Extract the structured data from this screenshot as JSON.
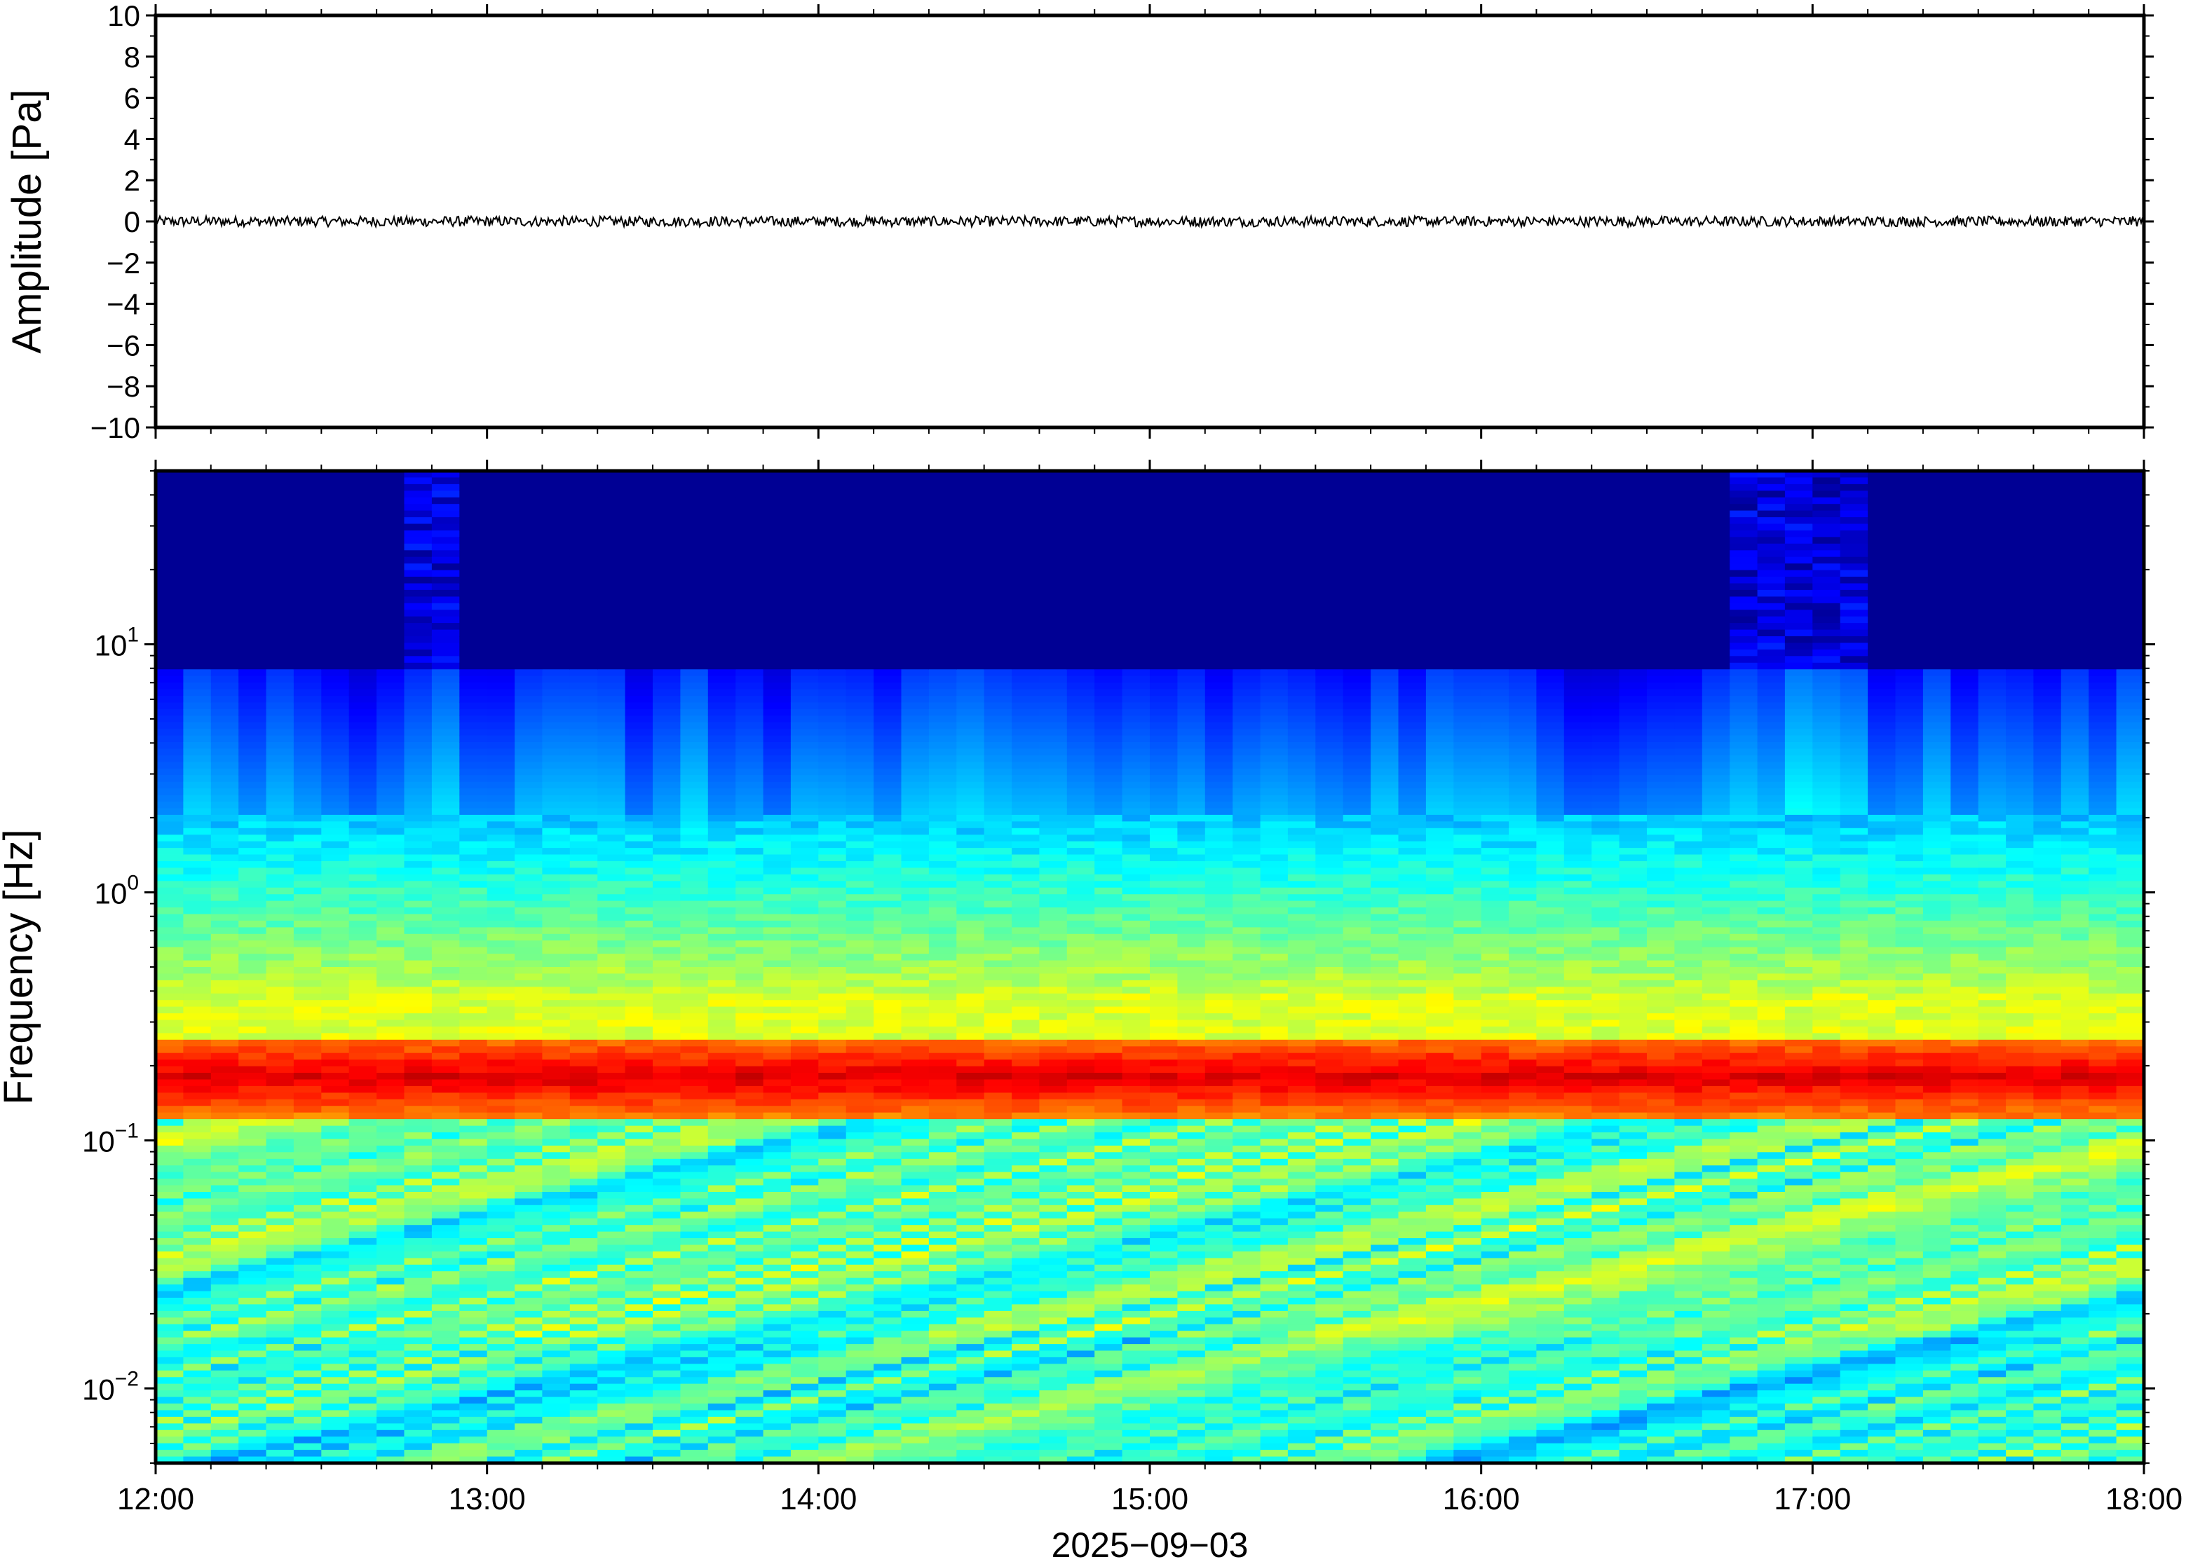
{
  "chart_data": [
    {
      "type": "line",
      "panel": "waveform",
      "ylabel": "Amplitude [Pa]",
      "ylim": [
        -10,
        10
      ],
      "yticks": [
        10,
        8,
        6,
        4,
        2,
        0,
        -2,
        -4,
        -6,
        -8,
        -10
      ],
      "ytick_labels": [
        "10",
        "8",
        "6",
        "4",
        "2",
        "0",
        "−2",
        "−4",
        "−6",
        "−8",
        "−10"
      ],
      "xlim": [
        "12:00",
        "18:00"
      ],
      "series": [
        {
          "color": "#000000",
          "baseline": 0,
          "peak_amplitude": 0.25
        }
      ],
      "grid": false
    },
    {
      "type": "heatmap",
      "panel": "spectrogram",
      "ylabel": "Frequency [Hz]",
      "y_scale": "log",
      "ylim": [
        0.005,
        50
      ],
      "yticks": [
        10,
        1,
        0.1,
        0.01
      ],
      "ytick_labels": [
        {
          "base": "10",
          "exp": "1"
        },
        {
          "base": "10",
          "exp": "0"
        },
        {
          "base": "10",
          "exp": "−1"
        },
        {
          "base": "10",
          "exp": "−2"
        }
      ],
      "xlim": [
        "12:00",
        "18:00"
      ],
      "xticks": [
        "12:00",
        "13:00",
        "14:00",
        "15:00",
        "16:00",
        "17:00",
        "18:00"
      ],
      "xlabel": "2025−09−03",
      "colormap": "jet",
      "dominant_band_hz": [
        0.13,
        0.25
      ],
      "grid": false
    }
  ],
  "colors": {
    "frame": "#000000",
    "background": "#ffffff",
    "spectrogram_floor": "#0a0875"
  }
}
